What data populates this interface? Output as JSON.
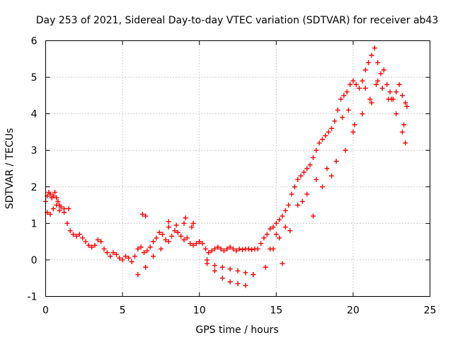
{
  "chart_data": {
    "type": "scatter",
    "title": "Day 253 of 2021, Sidereal Day-to-day VTEC variation (SDTVAR) for receiver ab43",
    "xlabel": "GPS time / hours",
    "ylabel": "SDTVAR / TECUs",
    "xlim": [
      0,
      25
    ],
    "ylim": [
      -1,
      6
    ],
    "xticks": [
      "0",
      "5",
      "10",
      "15",
      "20",
      "25"
    ],
    "yticks": [
      "-1",
      "0",
      "1",
      "2",
      "3",
      "4",
      "5",
      "6"
    ],
    "grid": true,
    "marker": "+",
    "color": "#ff0000",
    "series": [
      {
        "name": "ab43",
        "x": [
          0.0,
          0.1,
          0.2,
          0.3,
          0.4,
          0.5,
          0.6,
          0.7,
          0.8,
          0.9,
          1.0,
          1.2,
          1.4,
          1.6,
          1.8,
          2.0,
          2.2,
          2.4,
          2.6,
          2.8,
          3.0,
          3.2,
          3.4,
          3.6,
          3.8,
          4.0,
          4.2,
          4.4,
          4.6,
          4.8,
          5.0,
          5.2,
          5.4,
          5.6,
          5.8,
          6.0,
          6.2,
          6.4,
          6.6,
          6.8,
          7.0,
          7.2,
          7.4,
          7.6,
          7.8,
          8.0,
          8.2,
          8.4,
          8.6,
          8.8,
          9.0,
          9.2,
          9.4,
          9.6,
          9.8,
          10.0,
          10.2,
          10.4,
          10.6,
          10.8,
          11.0,
          11.2,
          11.4,
          11.6,
          11.8,
          12.0,
          12.2,
          12.4,
          12.6,
          12.8,
          13.0,
          13.2,
          13.4,
          13.6,
          13.8,
          14.0,
          14.2,
          14.4,
          14.6,
          14.8,
          15.0,
          15.2,
          15.4,
          15.6,
          15.8,
          16.0,
          16.2,
          16.4,
          16.6,
          16.8,
          17.0,
          17.2,
          17.4,
          17.6,
          17.8,
          18.0,
          18.2,
          18.4,
          18.6,
          18.8,
          19.0,
          19.2,
          19.4,
          19.6,
          19.8,
          20.0,
          20.2,
          20.4,
          20.6,
          20.8,
          21.0,
          21.2,
          21.4,
          21.6,
          21.8,
          22.0,
          22.2,
          22.4,
          22.6,
          22.8,
          23.0,
          23.2,
          23.4,
          23.5,
          0.1,
          0.3,
          0.5,
          0.7,
          0.9,
          1.2,
          1.5,
          6.3,
          6.5,
          8.0,
          8.5,
          9.1,
          9.6,
          10.5,
          11.0,
          11.5,
          12.0,
          12.5,
          13.0,
          13.5,
          14.3,
          14.8,
          15.2,
          15.6,
          16.4,
          17.0,
          17.6,
          18.3,
          18.9,
          19.3,
          19.7,
          20.1,
          20.6,
          21.1,
          21.5,
          21.9,
          22.3,
          22.8,
          23.2,
          23.4,
          6.0,
          6.5,
          7.0,
          7.5,
          8.0,
          9.0,
          9.5,
          10.0,
          10.5,
          11.0,
          11.5,
          12.0,
          12.5,
          13.0,
          13.5,
          14.6,
          15.0,
          15.4,
          15.9,
          16.7,
          17.4,
          18.0,
          18.6,
          19.5,
          20.0,
          20.8,
          21.2,
          21.6,
          22.5,
          23.3
        ],
        "y": [
          1.6,
          1.75,
          1.85,
          1.8,
          1.7,
          1.75,
          1.85,
          1.7,
          1.6,
          1.5,
          1.45,
          1.4,
          1.0,
          0.8,
          0.7,
          0.65,
          0.7,
          0.6,
          0.5,
          0.4,
          0.35,
          0.4,
          0.55,
          0.5,
          0.3,
          0.2,
          0.1,
          0.2,
          0.15,
          0.05,
          0.0,
          0.1,
          0.05,
          -0.05,
          0.1,
          0.3,
          0.35,
          0.2,
          0.25,
          0.35,
          0.5,
          0.6,
          0.75,
          0.7,
          0.55,
          0.5,
          0.65,
          0.8,
          0.75,
          0.65,
          0.55,
          0.6,
          0.45,
          0.4,
          0.45,
          0.5,
          0.45,
          0.3,
          0.2,
          0.25,
          0.3,
          0.35,
          0.3,
          0.25,
          0.3,
          0.35,
          0.3,
          0.25,
          0.3,
          0.28,
          0.3,
          0.3,
          0.28,
          0.3,
          0.3,
          0.45,
          0.6,
          0.7,
          0.85,
          0.9,
          1.0,
          1.1,
          1.2,
          1.35,
          1.5,
          1.8,
          2.0,
          2.2,
          2.3,
          2.4,
          2.5,
          2.6,
          2.8,
          3.0,
          3.2,
          3.3,
          3.4,
          3.5,
          3.6,
          3.8,
          4.1,
          4.4,
          4.5,
          4.6,
          4.8,
          4.9,
          4.8,
          4.7,
          4.9,
          5.2,
          5.4,
          5.6,
          5.8,
          5.4,
          5.1,
          5.2,
          4.8,
          4.6,
          4.4,
          4.6,
          4.8,
          4.5,
          4.3,
          4.2,
          1.3,
          1.25,
          1.4,
          1.5,
          1.35,
          1.3,
          1.4,
          1.25,
          1.2,
          1.05,
          0.95,
          1.15,
          1.0,
          -0.1,
          -0.3,
          -0.5,
          -0.6,
          -0.65,
          -0.7,
          -0.4,
          -0.2,
          0.3,
          0.6,
          0.9,
          1.5,
          1.8,
          2.2,
          2.5,
          2.7,
          3.9,
          4.1,
          3.7,
          4.0,
          4.4,
          4.8,
          4.7,
          4.4,
          4.0,
          3.5,
          3.2,
          -0.4,
          -0.2,
          0.1,
          0.3,
          0.9,
          1.0,
          0.9,
          0.5,
          0.0,
          -0.15,
          -0.2,
          -0.25,
          -0.3,
          -0.35,
          -0.4,
          0.3,
          0.7,
          -0.1,
          0.8,
          1.6,
          1.2,
          2.0,
          2.3,
          3.0,
          3.5,
          4.7,
          4.3,
          4.9,
          4.4,
          3.7
        ]
      }
    ]
  }
}
